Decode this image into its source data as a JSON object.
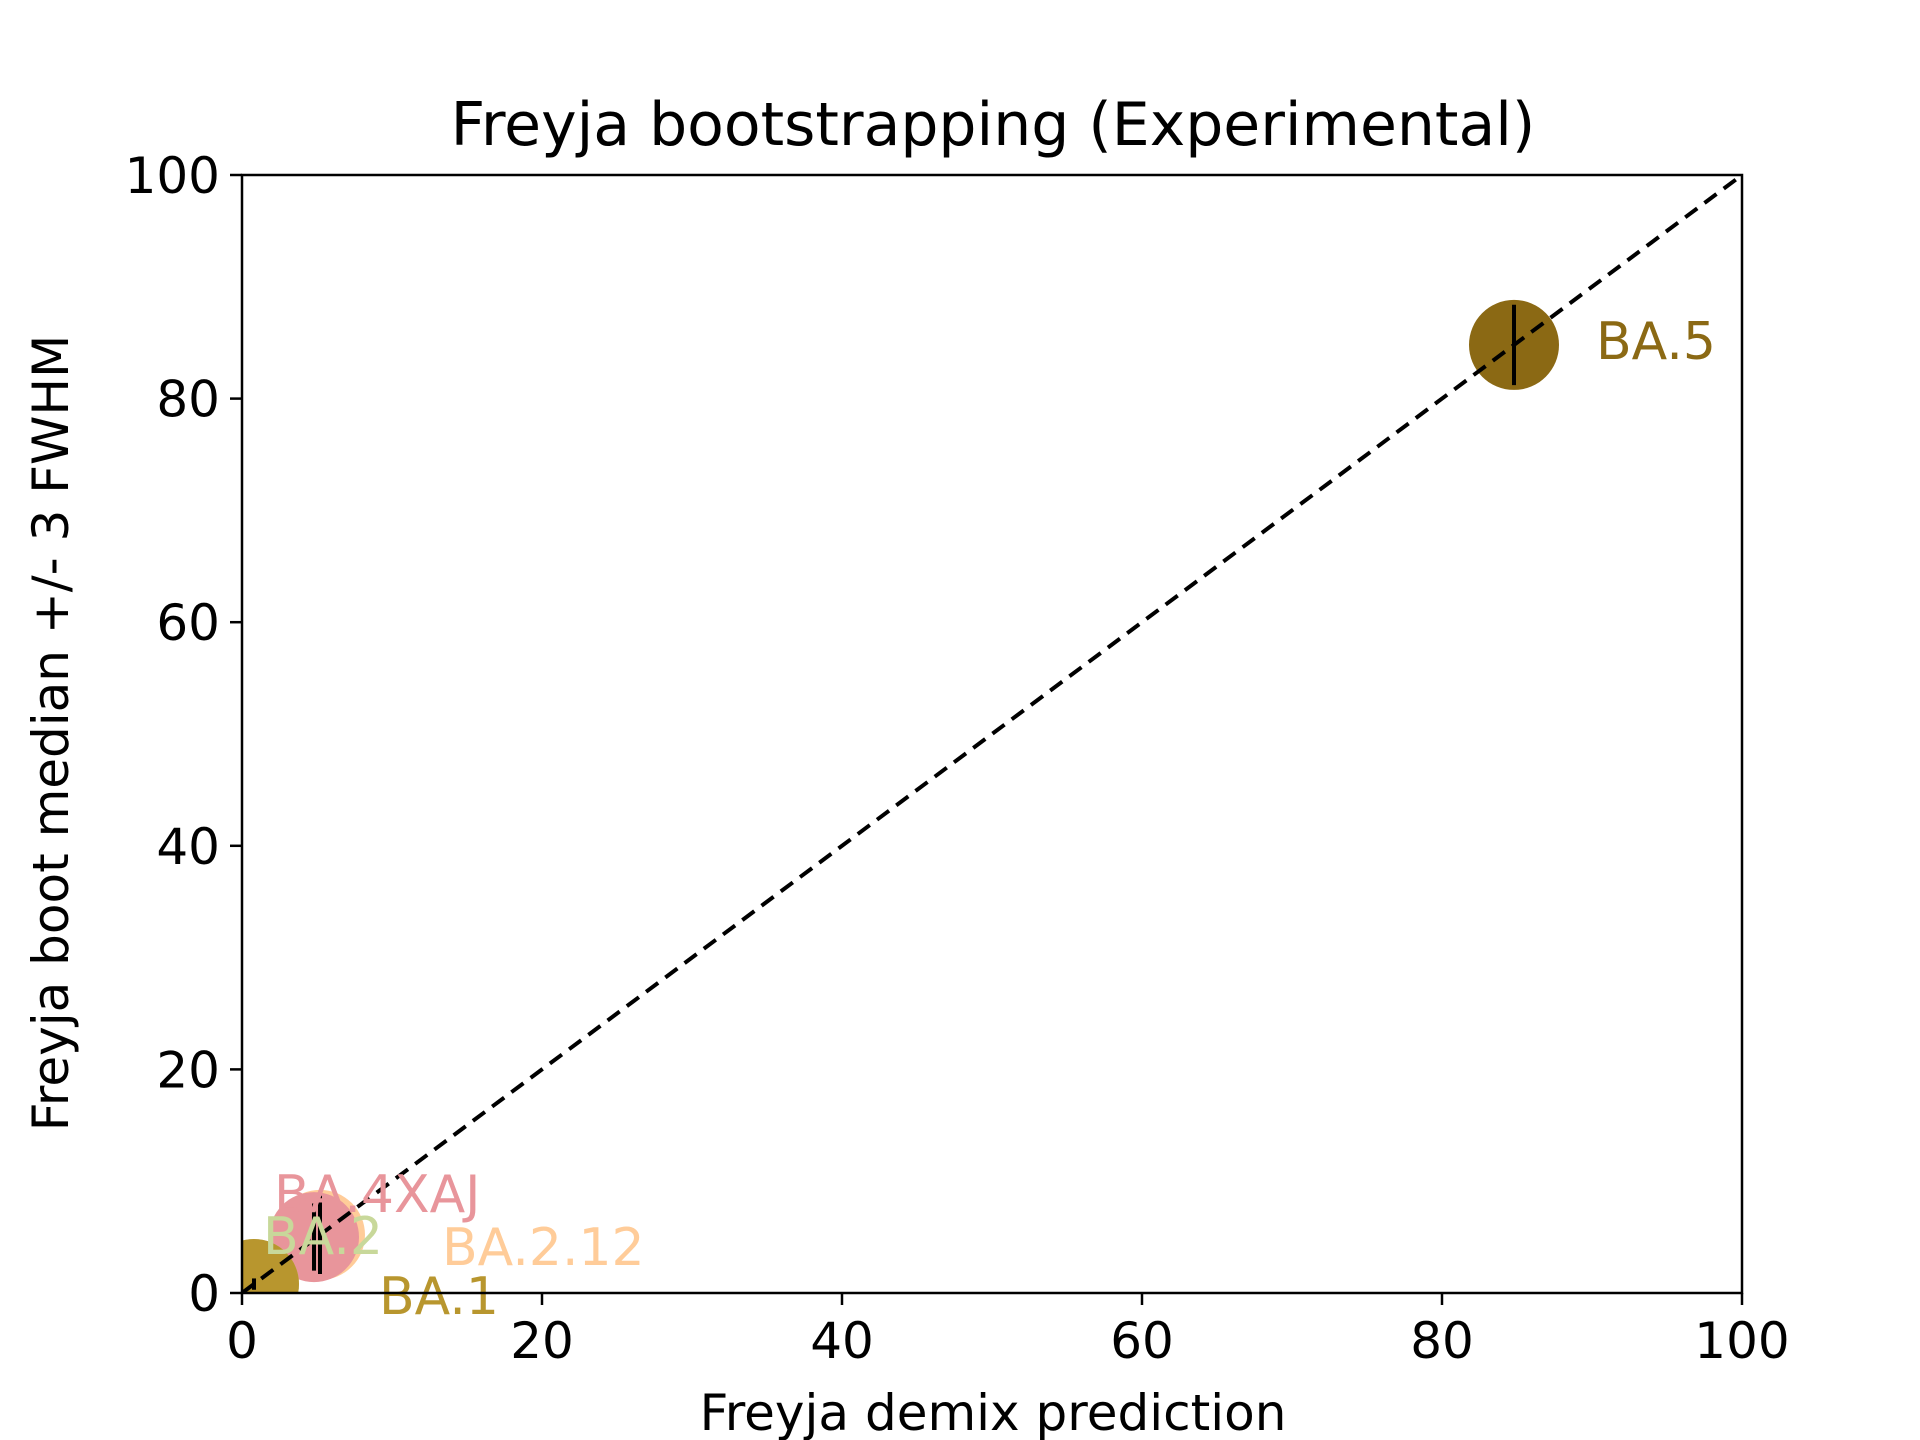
{
  "chart_data": {
    "type": "scatter",
    "title": "Freyja bootstrapping (Experimental)",
    "xlabel": "Freyja demix prediction",
    "ylabel": "Freyja boot median +/- 3 FWHM",
    "xlim": [
      0,
      100
    ],
    "ylim": [
      0,
      100
    ],
    "xticks": [
      "0",
      "20",
      "40",
      "60",
      "80",
      "100"
    ],
    "yticks": [
      "0",
      "20",
      "40",
      "60",
      "80",
      "100"
    ],
    "reference_line": {
      "style": "dashed",
      "color": "#000000",
      "from": [
        0,
        0
      ],
      "to": [
        100,
        100
      ]
    },
    "grid": false,
    "points": [
      {
        "label": "BA.5",
        "x": 84.8,
        "y": 84.8,
        "err_low": 3.6,
        "err_high": 3.6,
        "color": "#8B6914"
      },
      {
        "label": "BA.2.12",
        "x": 5.2,
        "y": 5.2,
        "err_low": 3.5,
        "err_high": 3.5,
        "color": "#FFCC99"
      },
      {
        "label": "BA.4XAJ",
        "x": 4.8,
        "y": 5.0,
        "err_low": 3.0,
        "err_high": 3.0,
        "color": "#E8959B"
      },
      {
        "label": "BA.2",
        "x": 0.8,
        "y": 0.8,
        "err_low": 0.5,
        "err_high": 0.5,
        "color": "#C8D89A"
      },
      {
        "label": "BA.1",
        "x": 0.8,
        "y": 0.8,
        "err_low": 0.5,
        "err_high": 0.5,
        "color": "#B8962E"
      }
    ]
  }
}
